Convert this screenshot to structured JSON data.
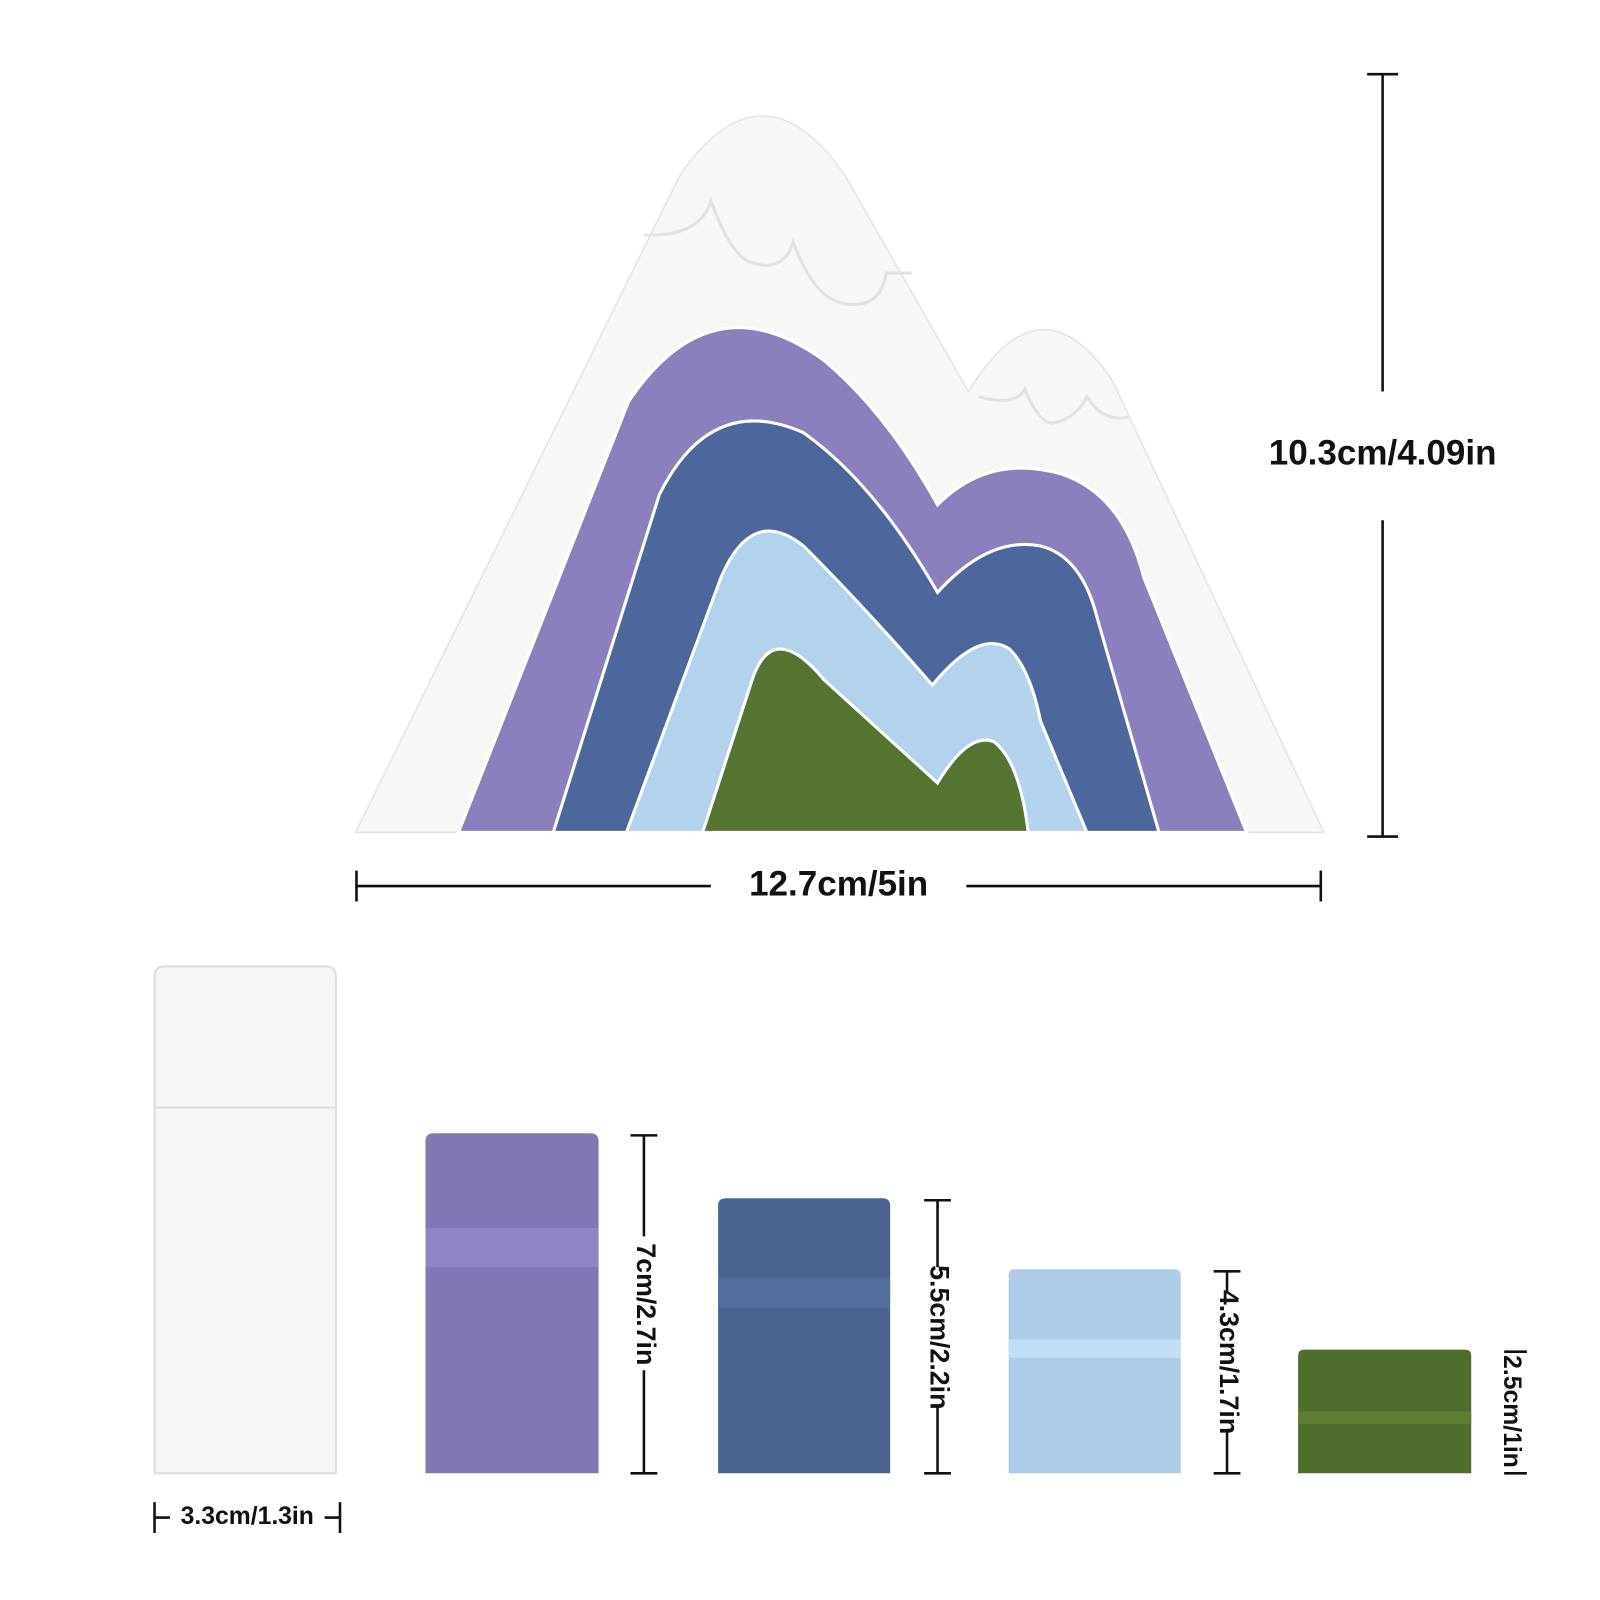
{
  "mountain": {
    "height_label": "10.3cm/4.09in",
    "width_label": "12.7cm/5in"
  },
  "pieces": [
    {
      "label": "3.3cm/1.3in"
    },
    {
      "label": "7cm/2.7in"
    },
    {
      "label": "5.5cm/2.2in"
    },
    {
      "label": "4.3cm/1.7in"
    },
    {
      "label": "2.5cm/1in"
    }
  ]
}
